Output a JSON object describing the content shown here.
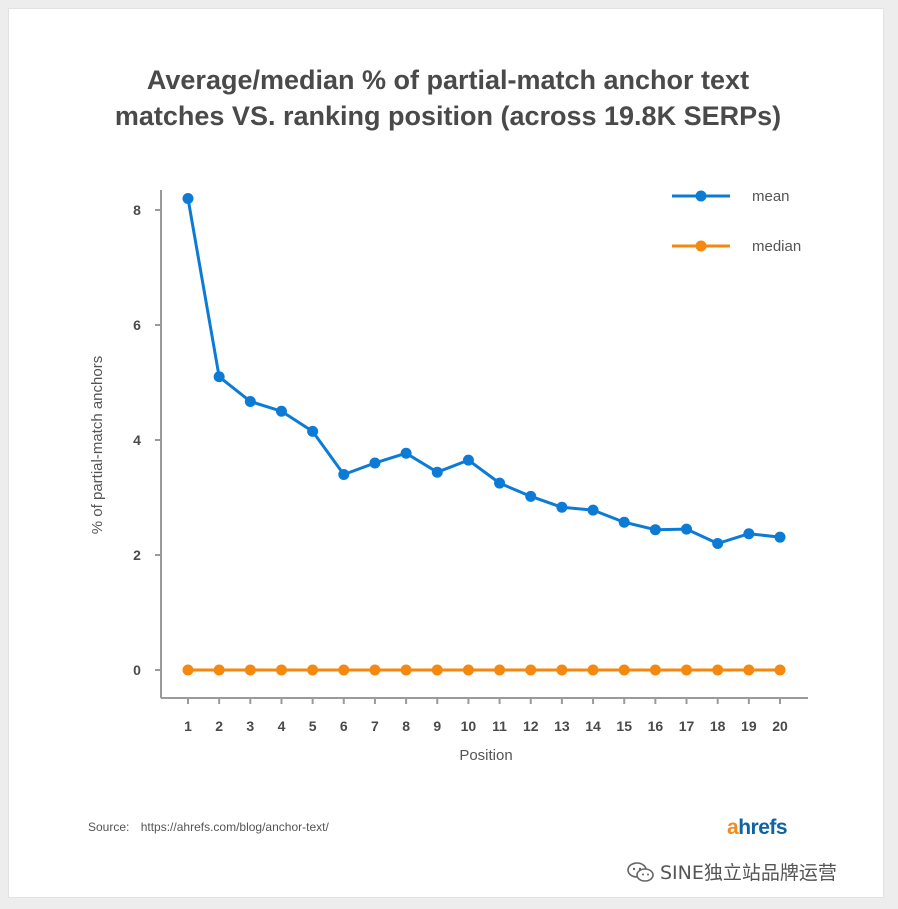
{
  "title_line1": "Average/median % of partial-match anchor text",
  "title_line2": "matches VS. ranking position (across 19.8K SERPs)",
  "source_label": "Source:",
  "source_url": "https://ahrefs.com/blog/anchor-text/",
  "logo_a": "a",
  "logo_rest": "hrefs",
  "watermark_text": "SINE独立站品牌运营",
  "colors": {
    "mean": "#0c7bd6",
    "median": "#f5890f",
    "axis": "#9a9a9a",
    "text": "#4a4a4a"
  },
  "chart_data": {
    "type": "line",
    "title": "Average/median % of partial-match anchor text matches VS. ranking position (across 19.8K SERPs)",
    "xlabel": "Position",
    "ylabel": "% of partial-match anchors",
    "x": [
      1,
      2,
      3,
      4,
      5,
      6,
      7,
      8,
      9,
      10,
      11,
      12,
      13,
      14,
      15,
      16,
      17,
      18,
      19,
      20
    ],
    "x_tick_labels": [
      "1",
      "2",
      "3",
      "4",
      "5",
      "6",
      "7",
      "8",
      "9",
      "10",
      "11",
      "12",
      "13",
      "14",
      "15",
      "16",
      "17",
      "18",
      "19",
      "20"
    ],
    "y_ticks": [
      0,
      2,
      4,
      6,
      8
    ],
    "y_tick_labels": [
      "0",
      "2",
      "4",
      "6",
      "8"
    ],
    "ylim": [
      -0.5,
      8.7
    ],
    "legend_position": "top-right",
    "grid": false,
    "series": [
      {
        "name": "mean",
        "values": [
          8.2,
          5.1,
          4.67,
          4.5,
          4.15,
          3.4,
          3.6,
          3.77,
          3.44,
          3.65,
          3.25,
          3.02,
          2.83,
          2.78,
          2.57,
          2.44,
          2.45,
          2.2,
          2.37,
          2.31
        ]
      },
      {
        "name": "median",
        "values": [
          0,
          0,
          0,
          0,
          0,
          0,
          0,
          0,
          0,
          0,
          0,
          0,
          0,
          0,
          0,
          0,
          0,
          0,
          0,
          0
        ]
      }
    ]
  }
}
